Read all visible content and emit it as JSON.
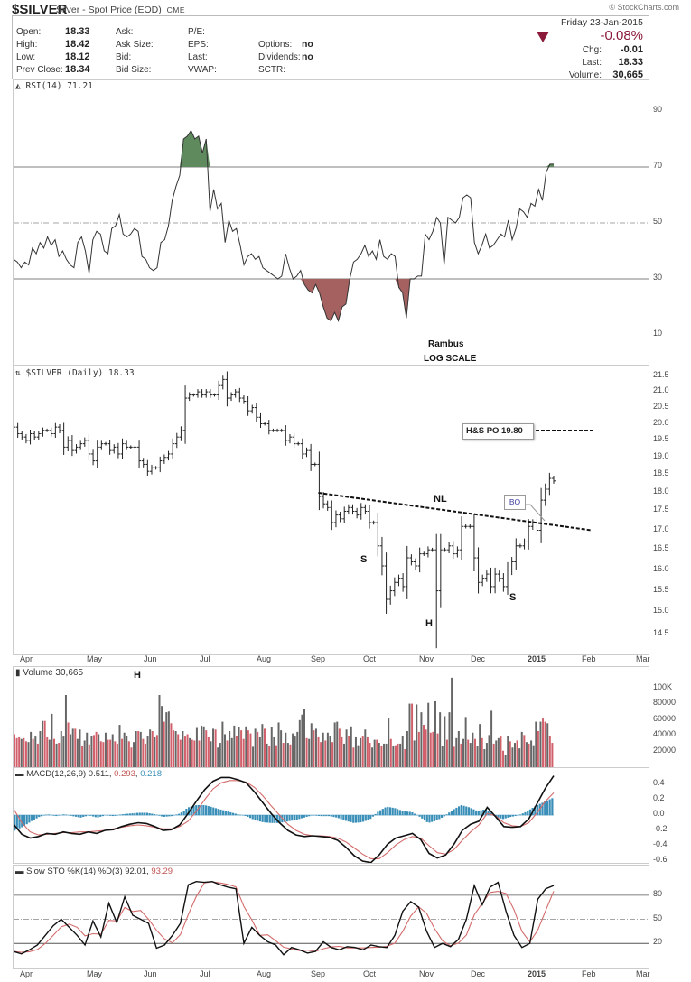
{
  "header": {
    "symbol": "$SILVER",
    "description": "Silver - Spot Price (EOD)",
    "exchange": "CME",
    "brand": "© StockCharts.com",
    "date": "Friday  23-Jan-2015",
    "change_pct": "-0.08%",
    "fields_left": [
      {
        "label": "Open:",
        "value": "18.33"
      },
      {
        "label": "High:",
        "value": "18.42"
      },
      {
        "label": "Low:",
        "value": "18.12"
      },
      {
        "label": "Prev Close:",
        "value": "18.34"
      }
    ],
    "fields_mid1": [
      "Ask:",
      "Ask Size:",
      "Bid:",
      "Bid Size:"
    ],
    "fields_mid2": [
      "P/E:",
      "EPS:",
      "Last:",
      "VWAP:"
    ],
    "fields_mid3": [
      {
        "label": "",
        "value": ""
      },
      {
        "label": "Options:",
        "value": "no"
      },
      {
        "label": "Dividends:",
        "value": "no"
      },
      {
        "label": "SCTR:",
        "value": ""
      }
    ],
    "fields_right": [
      {
        "label": "Chg:",
        "value": "-0.01"
      },
      {
        "label": "Last:",
        "value": "18.33"
      },
      {
        "label": "Volume:",
        "value": "30,665"
      }
    ]
  },
  "colors": {
    "down": "#8b1a3a",
    "overbought_fill": "#5e8a5e",
    "oversold_fill": "#a4615f",
    "volume_up": "#666666",
    "volume_down": "#d2606b",
    "macd_hist": "#3a8fb8",
    "signal": "#d36a6a"
  },
  "annotations": {
    "rambus": "Rambus",
    "log_scale": "LOG SCALE",
    "hs_po": "H&S PO 19.80",
    "nl": "NL",
    "bo": "BO",
    "s_left": "S",
    "h": "H",
    "s_right": "S",
    "vol_h": "H"
  },
  "chart_data": [
    {
      "type": "line",
      "title": "RSI(14) 71.21",
      "ylim": [
        0,
        100
      ],
      "yticks": [
        "90",
        "70",
        "50",
        "30",
        "10"
      ],
      "reference_lines": [
        70,
        50,
        30
      ],
      "x": [
        "Apr",
        "May",
        "Jun",
        "Jul",
        "Aug",
        "Sep",
        "Oct",
        "Nov",
        "Dec",
        "2015",
        "Feb",
        "Mar"
      ],
      "values": [
        37,
        36,
        34,
        36,
        35,
        41,
        39,
        43,
        41,
        45,
        42,
        44,
        38,
        40,
        37,
        35,
        34,
        43,
        45,
        40,
        32,
        44,
        47,
        46,
        40,
        39,
        48,
        49,
        53,
        46,
        45,
        46,
        48,
        47,
        38,
        37,
        34,
        33,
        34,
        43,
        44,
        49,
        58,
        63,
        67,
        80,
        81,
        83,
        80,
        81,
        75,
        80,
        54,
        62,
        55,
        57,
        43,
        51,
        47,
        48,
        42,
        35,
        38,
        39,
        37,
        38,
        34,
        33,
        32,
        31,
        30,
        31,
        39,
        34,
        30,
        31,
        33,
        28,
        26,
        25,
        28,
        25,
        20,
        16,
        15,
        18,
        15,
        20,
        21,
        30,
        36,
        37,
        39,
        42,
        38,
        40,
        37,
        44,
        38,
        37,
        39,
        38,
        27,
        25,
        16,
        30,
        30,
        31,
        31,
        46,
        44,
        47,
        52,
        50,
        35,
        52,
        51,
        50,
        52,
        59,
        60,
        59,
        43,
        39,
        42,
        46,
        41,
        42,
        44,
        46,
        45,
        51,
        44,
        48,
        55,
        54,
        52,
        57,
        56,
        62,
        58,
        68,
        71,
        71
      ],
      "current": 71.21
    },
    {
      "type": "bar",
      "title": "$SILVER (Daily) 18.33",
      "scale": "log",
      "ylim": [
        14.2,
        21.7
      ],
      "yticks": [
        "21.5",
        "21.0",
        "20.5",
        "20.0",
        "19.5",
        "19.0",
        "18.5",
        "18.0",
        "17.5",
        "17.0",
        "16.5",
        "16.0",
        "15.5",
        "15.0",
        "14.5"
      ],
      "x": [
        "Apr",
        "May",
        "Jun",
        "Jul",
        "Aug",
        "Sep",
        "Oct",
        "Nov",
        "Dec",
        "2015",
        "Feb",
        "Mar"
      ],
      "closes": [
        19.9,
        19.7,
        19.6,
        19.5,
        19.7,
        19.6,
        19.7,
        19.8,
        19.8,
        19.7,
        19.9,
        19.8,
        19.3,
        19.5,
        19.2,
        19.3,
        19.4,
        19.5,
        19.1,
        18.9,
        19.3,
        19.4,
        19.4,
        19.2,
        19.3,
        19.1,
        19.4,
        19.3,
        19.3,
        19.3,
        18.9,
        18.8,
        18.6,
        18.7,
        18.7,
        18.9,
        19.0,
        19.1,
        19.4,
        19.6,
        19.8,
        20.8,
        20.9,
        20.9,
        21.0,
        20.9,
        21.0,
        20.9,
        20.9,
        21.2,
        21.4,
        20.8,
        20.9,
        21.0,
        20.8,
        20.7,
        20.4,
        20.5,
        20.2,
        20.0,
        20.0,
        19.8,
        19.8,
        19.8,
        19.8,
        19.5,
        19.6,
        19.4,
        19.4,
        19.1,
        19.2,
        18.8,
        18.8,
        17.9,
        17.7,
        17.6,
        17.2,
        17.4,
        17.3,
        17.5,
        17.6,
        17.5,
        17.4,
        17.6,
        17.5,
        17.2,
        17.2,
        16.6,
        16.1,
        15.3,
        15.5,
        15.7,
        15.8,
        15.6,
        16.3,
        16.2,
        16.1,
        16.4,
        16.4,
        16.5,
        16.5,
        15.5,
        16.5,
        16.5,
        16.6,
        16.4,
        16.5,
        17.1,
        17.1,
        17.1,
        16.3,
        15.7,
        15.8,
        15.9,
        15.6,
        15.9,
        15.8,
        15.6,
        16.0,
        16.2,
        16.6,
        16.6,
        16.7,
        17.1,
        17.2,
        17.0,
        17.8,
        18.1,
        18.4,
        18.33
      ],
      "neckline": {
        "from": [
          0.48,
          18.0
        ],
        "to": [
          0.91,
          17.0
        ]
      },
      "target": 19.8
    },
    {
      "type": "bar",
      "title": "Volume 30,665",
      "ylim": [
        0,
        115000
      ],
      "yticks": [
        "100K",
        "80000",
        "60000",
        "40000",
        "20000"
      ],
      "values": [
        42,
        37,
        38,
        36,
        37,
        33,
        32,
        45,
        36,
        39,
        30,
        46,
        59,
        59,
        38,
        35,
        68,
        36,
        30,
        31,
        46,
        39,
        92,
        57,
        42,
        49,
        49,
        36,
        48,
        27,
        34,
        44,
        29,
        40,
        41,
        45,
        42,
        33,
        32,
        44,
        35,
        35,
        42,
        33,
        30,
        54,
        36,
        44,
        40,
        33,
        25,
        32,
        46,
        46,
        45,
        36,
        30,
        40,
        48,
        46,
        38,
        41,
        92,
        78,
        58,
        70,
        71,
        56,
        47,
        46,
        42,
        35,
        46,
        39,
        42,
        37,
        35,
        34,
        50,
        34,
        53,
        52,
        47,
        38,
        33,
        49,
        48,
        25,
        31,
        58,
        42,
        34,
        46,
        37,
        53,
        40,
        51,
        47,
        36,
        52,
        47,
        43,
        26,
        49,
        45,
        38,
        55,
        49,
        30,
        27,
        51,
        38,
        28,
        57,
        47,
        31,
        44,
        31,
        29,
        43,
        39,
        45,
        60,
        67,
        74,
        37,
        36,
        56,
        47,
        49,
        38,
        32,
        44,
        34,
        44,
        40,
        32,
        57,
        58,
        49,
        38,
        30,
        48,
        40,
        52,
        25,
        38,
        28,
        37,
        39,
        48,
        38,
        31,
        25,
        35,
        35,
        31,
        27,
        30,
        30,
        62,
        36,
        27,
        28,
        30,
        30,
        40,
        23,
        46,
        81,
        81,
        34,
        80,
        45,
        70,
        54,
        48,
        82,
        44,
        45,
        84,
        43,
        70,
        27,
        65,
        35,
        70,
        114,
        26,
        37,
        46,
        30,
        36,
        64,
        35,
        31,
        44,
        36,
        27,
        55,
        37,
        23,
        31,
        41,
        72,
        30,
        34,
        37,
        39,
        21,
        15,
        40,
        33,
        25,
        31,
        34,
        24,
        45,
        41,
        32,
        30,
        34,
        28,
        58,
        46,
        58,
        62,
        58,
        56,
        40,
        31
      ],
      "current": 30665
    },
    {
      "type": "line",
      "title": "MACD(12,26,9) 0.511, 0.293, 0.218",
      "ylim": [
        -0.68,
        0.56
      ],
      "yticks": [
        "0.4",
        "0.2",
        "0.0",
        "-0.2",
        "-0.4",
        "-0.6"
      ],
      "series": [
        {
          "name": "MACD",
          "current": 0.511
        },
        {
          "name": "Signal",
          "current": 0.293
        },
        {
          "name": "Histogram",
          "current": 0.218
        }
      ],
      "macd": [
        -0.12,
        -0.25,
        -0.3,
        -0.28,
        -0.24,
        -0.25,
        -0.22,
        -0.24,
        -0.25,
        -0.22,
        -0.24,
        -0.2,
        -0.19,
        -0.15,
        -0.12,
        -0.1,
        -0.11,
        -0.15,
        -0.2,
        -0.19,
        -0.13,
        0.02,
        0.18,
        0.33,
        0.44,
        0.49,
        0.49,
        0.46,
        0.42,
        0.3,
        0.16,
        0.02,
        -0.1,
        -0.2,
        -0.26,
        -0.28,
        -0.27,
        -0.28,
        -0.29,
        -0.33,
        -0.42,
        -0.53,
        -0.6,
        -0.62,
        -0.52,
        -0.38,
        -0.3,
        -0.27,
        -0.24,
        -0.32,
        -0.5,
        -0.56,
        -0.52,
        -0.38,
        -0.2,
        -0.12,
        -0.08,
        0.1,
        -0.02,
        -0.15,
        -0.16,
        -0.15,
        -0.05,
        0.15,
        0.35,
        0.51
      ],
      "signal": [
        0.08,
        -0.1,
        -0.22,
        -0.26,
        -0.25,
        -0.24,
        -0.23,
        -0.23,
        -0.22,
        -0.22,
        -0.21,
        -0.2,
        -0.18,
        -0.16,
        -0.14,
        -0.13,
        -0.14,
        -0.16,
        -0.18,
        -0.18,
        -0.15,
        -0.08,
        0.05,
        0.2,
        0.34,
        0.42,
        0.45,
        0.45,
        0.43,
        0.36,
        0.25,
        0.12,
        0.0,
        -0.12,
        -0.2,
        -0.25,
        -0.27,
        -0.27,
        -0.28,
        -0.3,
        -0.35,
        -0.43,
        -0.51,
        -0.57,
        -0.57,
        -0.49,
        -0.39,
        -0.32,
        -0.28,
        -0.3,
        -0.4,
        -0.49,
        -0.51,
        -0.45,
        -0.33,
        -0.22,
        -0.13,
        0.02,
        -0.01,
        -0.1,
        -0.14,
        -0.15,
        -0.1,
        0.03,
        0.18,
        0.29
      ]
    },
    {
      "type": "line",
      "title": "Slow STO %K(14) %D(3) 92.01, 93.29",
      "ylim": [
        0,
        100
      ],
      "yticks": [
        "80",
        "50",
        "20"
      ],
      "reference_lines": [
        80,
        50,
        20
      ],
      "series": [
        {
          "name": "%K",
          "current": 92.01
        },
        {
          "name": "%D",
          "current": 93.29
        }
      ],
      "k": [
        10,
        7,
        12,
        18,
        30,
        42,
        50,
        40,
        30,
        18,
        48,
        28,
        70,
        46,
        78,
        55,
        50,
        45,
        14,
        18,
        30,
        45,
        93,
        97,
        96,
        97,
        93,
        90,
        88,
        20,
        40,
        30,
        22,
        18,
        6,
        15,
        12,
        8,
        10,
        22,
        15,
        12,
        16,
        15,
        12,
        18,
        16,
        15,
        30,
        60,
        72,
        65,
        35,
        15,
        20,
        16,
        25,
        50,
        92,
        68,
        90,
        96,
        60,
        30,
        15,
        20,
        75,
        88,
        92
      ]
    }
  ],
  "axis": {
    "months": [
      "Apr",
      "May",
      "Jun",
      "Jul",
      "Aug",
      "Sep",
      "Oct",
      "Nov",
      "Dec",
      "2015",
      "Feb",
      "Mar"
    ]
  }
}
